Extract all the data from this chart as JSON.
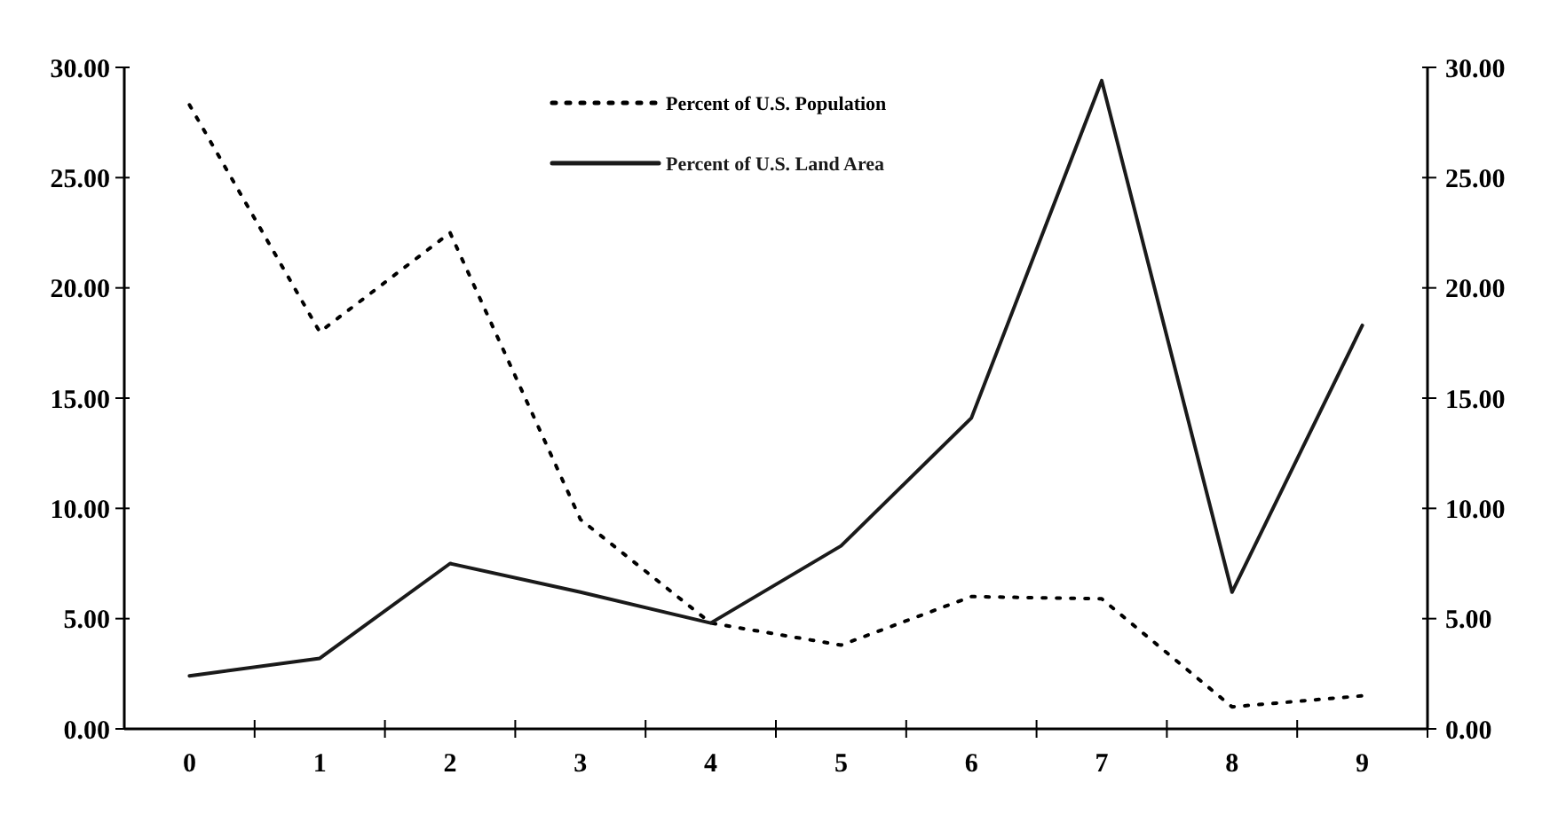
{
  "chart_data": {
    "type": "line",
    "categories": [
      "0",
      "1",
      "2",
      "3",
      "4",
      "5",
      "6",
      "7",
      "8",
      "9"
    ],
    "series": [
      {
        "name": "Percent of U.S. Population",
        "color": "#000000",
        "line_style": "dotted",
        "values": [
          28.3,
          18.0,
          22.5,
          9.5,
          4.8,
          3.8,
          6.0,
          5.9,
          1.0,
          1.5
        ]
      },
      {
        "name": "Percent of U.S. Land Area",
        "color": "#1a1a1a",
        "line_style": "solid",
        "values": [
          2.4,
          3.2,
          7.5,
          6.2,
          4.8,
          8.3,
          14.1,
          29.4,
          6.2,
          18.3
        ]
      }
    ],
    "ylim": [
      0,
      30
    ],
    "yticks": [
      {
        "value": 0,
        "label": "0.00"
      },
      {
        "value": 5,
        "label": "5.00"
      },
      {
        "value": 10,
        "label": "10.00"
      },
      {
        "value": 15,
        "label": "15.00"
      },
      {
        "value": 20,
        "label": "20.00"
      },
      {
        "value": 25,
        "label": "25.00"
      },
      {
        "value": 30,
        "label": "30.00"
      }
    ],
    "y2lim": [
      0,
      30
    ],
    "y2ticks": [
      {
        "value": 0,
        "label": "0.00"
      },
      {
        "value": 5,
        "label": "5.00"
      },
      {
        "value": 10,
        "label": "10.00"
      },
      {
        "value": 15,
        "label": "15.00"
      },
      {
        "value": 20,
        "label": "20.00"
      },
      {
        "value": 25,
        "label": "25.00"
      },
      {
        "value": 30,
        "label": "30.00"
      }
    ],
    "grid": false,
    "legend": "top",
    "marker": "none"
  }
}
